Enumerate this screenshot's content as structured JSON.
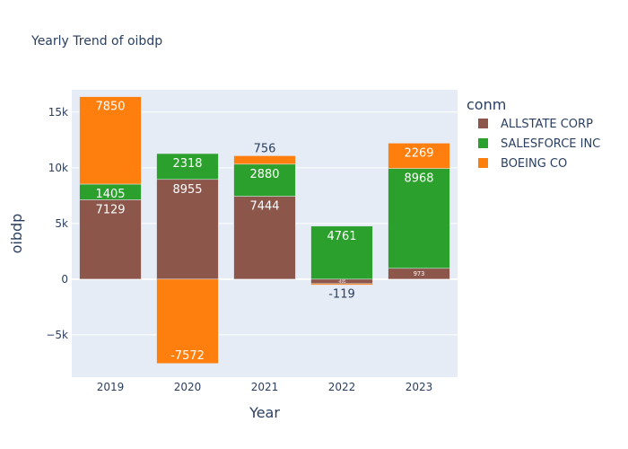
{
  "chart_data": {
    "type": "bar",
    "barmode": "relative",
    "title": "Yearly Trend of oibdp",
    "xlabel": "Year",
    "ylabel": "oibdp",
    "legend_title": "conm",
    "legend_position": "right",
    "categories": [
      "2019",
      "2020",
      "2021",
      "2022",
      "2023"
    ],
    "y_ticks": [
      -5000,
      0,
      5000,
      10000,
      15000
    ],
    "y_tick_labels": [
      "−5k",
      "0",
      "5k",
      "10k",
      "15k"
    ],
    "ylim": [
      -8800,
      17000
    ],
    "grid": true,
    "series": [
      {
        "name": "ALLSTATE CORP",
        "color": "#8c564b",
        "values": [
          7129,
          8955,
          7444,
          -405,
          973
        ],
        "labels": [
          "7129",
          "8955",
          "7444",
          "-405",
          "973"
        ]
      },
      {
        "name": "SALESFORCE INC",
        "color": "#2ca02c",
        "values": [
          1405,
          2318,
          2880,
          4761,
          8968
        ],
        "labels": [
          "1405",
          "2318",
          "2880",
          "4761",
          "8968"
        ]
      },
      {
        "name": "BOEING CO",
        "color": "#ff7f0e",
        "values": [
          7850,
          -7572,
          756,
          -119,
          2269
        ],
        "labels": [
          "7850",
          "-7572",
          "756",
          "-119",
          "2269"
        ]
      }
    ]
  }
}
